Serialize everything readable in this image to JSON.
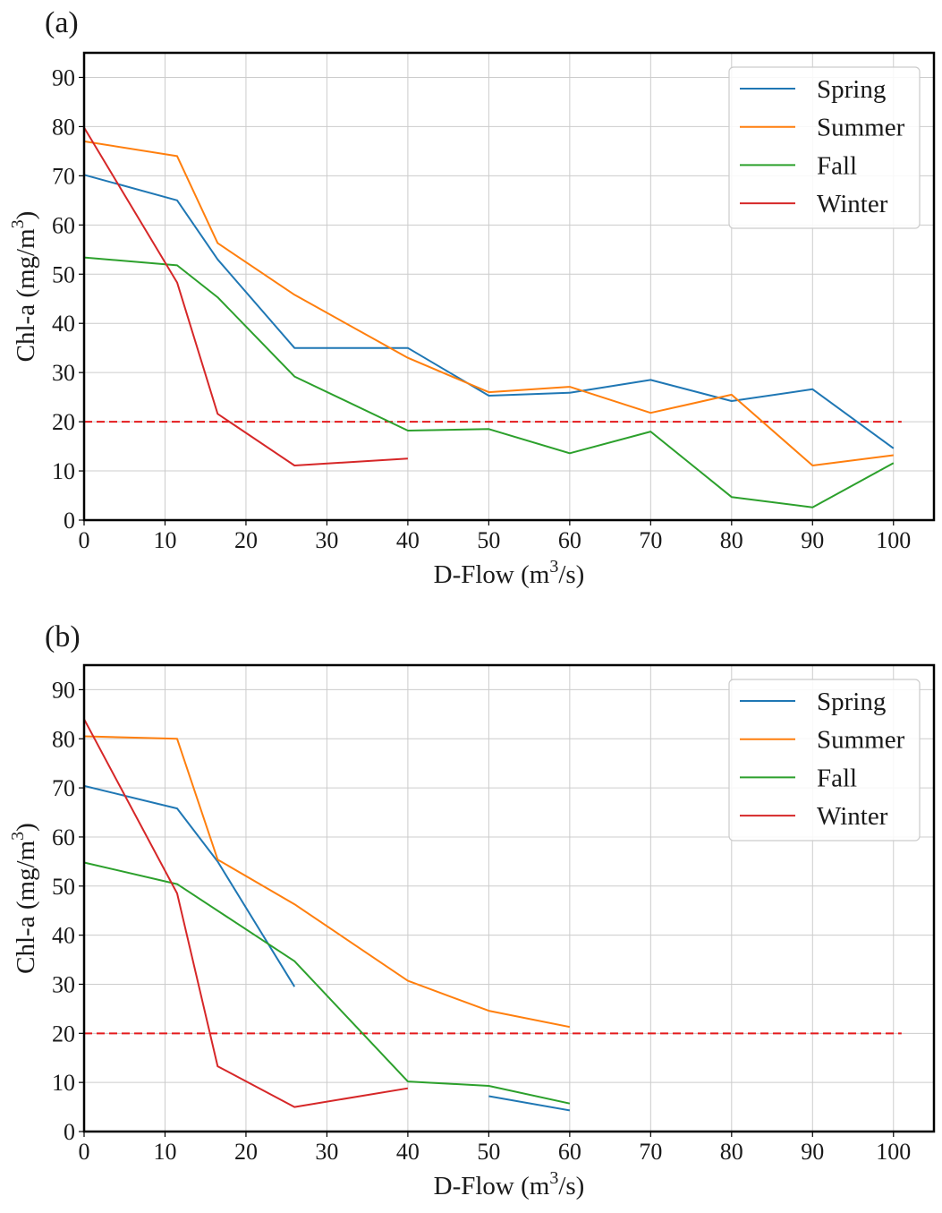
{
  "chart_data": [
    {
      "panel_label": "(a)",
      "type": "line",
      "xlabel": "D-Flow (m",
      "xlabel_sup": "3",
      "xlabel_tail": "/s)",
      "ylabel": "Chl-a (mg/m",
      "ylabel_sup": "3",
      "ylabel_tail": ")",
      "xlim": [
        0,
        105
      ],
      "ylim": [
        0,
        95
      ],
      "xticks": [
        0,
        10,
        20,
        30,
        40,
        50,
        60,
        70,
        80,
        90,
        100
      ],
      "yticks": [
        0,
        10,
        20,
        30,
        40,
        50,
        60,
        70,
        80,
        90
      ],
      "grid": true,
      "legend_position": "top-right",
      "threshold": {
        "y": 20,
        "x_range": [
          0,
          101
        ],
        "color": "#e41a1c",
        "style": "dashed"
      },
      "series": [
        {
          "name": "Spring",
          "color": "#1f77b4",
          "segments": [
            [
              [
                0,
                70.2
              ],
              [
                11.5,
                65
              ],
              [
                16.5,
                53
              ],
              [
                26,
                35
              ],
              [
                40,
                35
              ],
              [
                50,
                25.3
              ],
              [
                60,
                25.9
              ],
              [
                70,
                28.5
              ],
              [
                80,
                24.2
              ],
              [
                90,
                26.6
              ],
              [
                100,
                14.6
              ]
            ]
          ]
        },
        {
          "name": "Summer",
          "color": "#ff7f0e",
          "segments": [
            [
              [
                0,
                77
              ],
              [
                11.5,
                74
              ],
              [
                16.5,
                56.3
              ],
              [
                26,
                45.8
              ],
              [
                40,
                33
              ],
              [
                50,
                26
              ],
              [
                60,
                27.1
              ],
              [
                70,
                21.8
              ],
              [
                80,
                25.5
              ],
              [
                90,
                11.1
              ],
              [
                100,
                13.2
              ]
            ]
          ]
        },
        {
          "name": "Fall",
          "color": "#2ca02c",
          "segments": [
            [
              [
                0,
                53.4
              ],
              [
                11.5,
                51.8
              ],
              [
                16.5,
                45.3
              ],
              [
                26,
                29.2
              ],
              [
                40,
                18.2
              ],
              [
                50,
                18.5
              ],
              [
                60,
                13.6
              ],
              [
                70,
                18
              ],
              [
                80,
                4.7
              ],
              [
                90,
                2.6
              ],
              [
                100,
                11.6
              ]
            ]
          ]
        },
        {
          "name": "Winter",
          "color": "#d62728",
          "segments": [
            [
              [
                0,
                79.8
              ],
              [
                11.5,
                48.3
              ],
              [
                16.5,
                21.6
              ],
              [
                26,
                11.1
              ],
              [
                40,
                12.5
              ]
            ]
          ]
        }
      ]
    },
    {
      "panel_label": "(b)",
      "type": "line",
      "xlabel": "D-Flow (m",
      "xlabel_sup": "3",
      "xlabel_tail": "/s)",
      "ylabel": "Chl-a (mg/m",
      "ylabel_sup": "3",
      "ylabel_tail": ")",
      "xlim": [
        0,
        105
      ],
      "ylim": [
        0,
        95
      ],
      "xticks": [
        0,
        10,
        20,
        30,
        40,
        50,
        60,
        70,
        80,
        90,
        100
      ],
      "yticks": [
        0,
        10,
        20,
        30,
        40,
        50,
        60,
        70,
        80,
        90
      ],
      "grid": true,
      "legend_position": "top-right",
      "threshold": {
        "y": 20,
        "x_range": [
          0,
          101
        ],
        "color": "#e41a1c",
        "style": "dashed"
      },
      "series": [
        {
          "name": "Spring",
          "color": "#1f77b4",
          "segments": [
            [
              [
                0,
                70.4
              ],
              [
                11.5,
                65.8
              ],
              [
                16.5,
                55
              ],
              [
                26,
                29.5
              ]
            ],
            [
              [
                50,
                7.2
              ],
              [
                60,
                4.3
              ]
            ]
          ]
        },
        {
          "name": "Summer",
          "color": "#ff7f0e",
          "segments": [
            [
              [
                0,
                80.5
              ],
              [
                11.5,
                80
              ],
              [
                16.5,
                55.4
              ],
              [
                26,
                46.3
              ],
              [
                40,
                30.7
              ],
              [
                50,
                24.6
              ],
              [
                60,
                21.3
              ]
            ]
          ]
        },
        {
          "name": "Fall",
          "color": "#2ca02c",
          "segments": [
            [
              [
                0,
                54.8
              ],
              [
                11.5,
                50.4
              ],
              [
                26,
                34.7
              ],
              [
                40,
                10.2
              ],
              [
                50,
                9.3
              ],
              [
                60,
                5.7
              ]
            ]
          ]
        },
        {
          "name": "Winter",
          "color": "#d62728",
          "segments": [
            [
              [
                0,
                84
              ],
              [
                11.5,
                48.5
              ],
              [
                16.5,
                13.3
              ],
              [
                26,
                5
              ],
              [
                40,
                8.8
              ]
            ]
          ]
        }
      ]
    }
  ]
}
